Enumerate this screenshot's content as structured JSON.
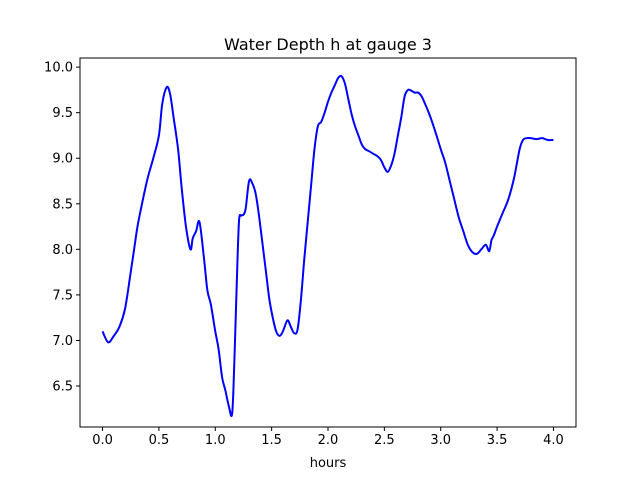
{
  "chart_data": {
    "type": "line",
    "title": "Water Depth h at gauge 3",
    "xlabel": "hours",
    "ylabel": "",
    "xlim": [
      -0.2,
      4.2
    ],
    "ylim": [
      6.05,
      10.1
    ],
    "xticks": [
      0.0,
      0.5,
      1.0,
      1.5,
      2.0,
      2.5,
      3.0,
      3.5,
      4.0
    ],
    "xtick_labels": [
      "0.0",
      "0.5",
      "1.0",
      "1.5",
      "2.0",
      "2.5",
      "3.0",
      "3.5",
      "4.0"
    ],
    "yticks": [
      6.5,
      7.0,
      7.5,
      8.0,
      8.5,
      9.0,
      9.5,
      10.0
    ],
    "ytick_labels": [
      "6.5",
      "7.0",
      "7.5",
      "8.0",
      "8.5",
      "9.0",
      "9.5",
      "10.0"
    ],
    "grid": false,
    "series": [
      {
        "color": "#0000ff",
        "x": [
          0.0,
          0.05,
          0.1,
          0.15,
          0.2,
          0.25,
          0.28,
          0.31,
          0.35,
          0.4,
          0.45,
          0.5,
          0.53,
          0.57,
          0.6,
          0.63,
          0.67,
          0.7,
          0.74,
          0.78,
          0.8,
          0.83,
          0.86,
          0.9,
          0.93,
          0.96,
          1.0,
          1.03,
          1.06,
          1.09,
          1.12,
          1.15,
          1.17,
          1.19,
          1.21,
          1.23,
          1.25,
          1.27,
          1.3,
          1.33,
          1.36,
          1.39,
          1.42,
          1.45,
          1.48,
          1.51,
          1.54,
          1.57,
          1.6,
          1.64,
          1.67,
          1.7,
          1.73,
          1.76,
          1.79,
          1.82,
          1.85,
          1.88,
          1.91,
          1.94,
          1.97,
          2.0,
          2.03,
          2.06,
          2.09,
          2.12,
          2.15,
          2.18,
          2.21,
          2.24,
          2.27,
          2.3,
          2.33,
          2.36,
          2.4,
          2.44,
          2.47,
          2.5,
          2.53,
          2.56,
          2.59,
          2.62,
          2.65,
          2.68,
          2.71,
          2.74,
          2.77,
          2.8,
          2.83,
          2.86,
          2.9,
          2.95,
          3.0,
          3.04,
          3.08,
          3.12,
          3.16,
          3.2,
          3.24,
          3.28,
          3.32,
          3.36,
          3.4,
          3.43,
          3.45,
          3.47,
          3.5,
          3.55,
          3.6,
          3.65,
          3.7,
          3.73,
          3.76,
          3.8,
          3.85,
          3.9,
          3.95,
          4.0
        ],
        "y": [
          7.1,
          6.98,
          7.05,
          7.15,
          7.35,
          7.75,
          8.0,
          8.25,
          8.5,
          8.78,
          9.0,
          9.25,
          9.6,
          9.78,
          9.7,
          9.45,
          9.1,
          8.7,
          8.25,
          8.0,
          8.12,
          8.2,
          8.3,
          7.9,
          7.55,
          7.4,
          7.1,
          6.9,
          6.6,
          6.45,
          6.28,
          6.2,
          6.8,
          7.6,
          8.3,
          8.37,
          8.38,
          8.45,
          8.75,
          8.72,
          8.6,
          8.35,
          8.05,
          7.75,
          7.45,
          7.25,
          7.1,
          7.05,
          7.1,
          7.22,
          7.15,
          7.08,
          7.12,
          7.45,
          7.9,
          8.3,
          8.7,
          9.1,
          9.35,
          9.4,
          9.5,
          9.62,
          9.72,
          9.8,
          9.88,
          9.9,
          9.82,
          9.65,
          9.48,
          9.35,
          9.25,
          9.15,
          9.1,
          9.08,
          9.05,
          9.02,
          8.98,
          8.9,
          8.85,
          8.92,
          9.05,
          9.25,
          9.45,
          9.68,
          9.75,
          9.74,
          9.72,
          9.72,
          9.68,
          9.6,
          9.48,
          9.3,
          9.1,
          8.95,
          8.75,
          8.55,
          8.35,
          8.2,
          8.05,
          7.97,
          7.95,
          8.0,
          8.05,
          7.98,
          8.1,
          8.15,
          8.25,
          8.4,
          8.55,
          8.78,
          9.1,
          9.2,
          9.22,
          9.22,
          9.21,
          9.22,
          9.2,
          9.2
        ]
      }
    ]
  }
}
